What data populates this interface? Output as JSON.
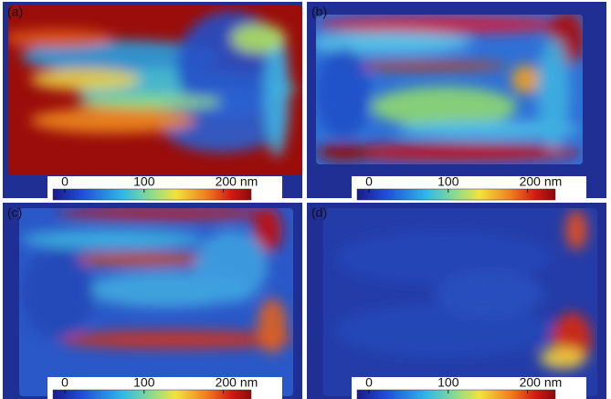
{
  "panels": [
    {
      "label": "(a)",
      "colorbar": {
        "lim": [
          -15,
          235
        ],
        "ticks": [
          0,
          100,
          {
            "value": 200,
            "label": "200 nm"
          }
        ]
      }
    },
    {
      "label": "(b)",
      "colorbar": {
        "lim": [
          -15,
          235
        ],
        "ticks": [
          0,
          100,
          {
            "value": 200,
            "label": "200 nm"
          }
        ]
      }
    },
    {
      "label": "(c)",
      "colorbar": {
        "lim": [
          -15,
          235
        ],
        "ticks": [
          0,
          100,
          {
            "value": 200,
            "label": "200 nm"
          }
        ]
      }
    },
    {
      "label": "(d)",
      "colorbar": {
        "lim": [
          -15,
          235
        ],
        "ticks": [
          0,
          100,
          {
            "value": 200,
            "label": "200 nm"
          }
        ]
      }
    }
  ]
}
